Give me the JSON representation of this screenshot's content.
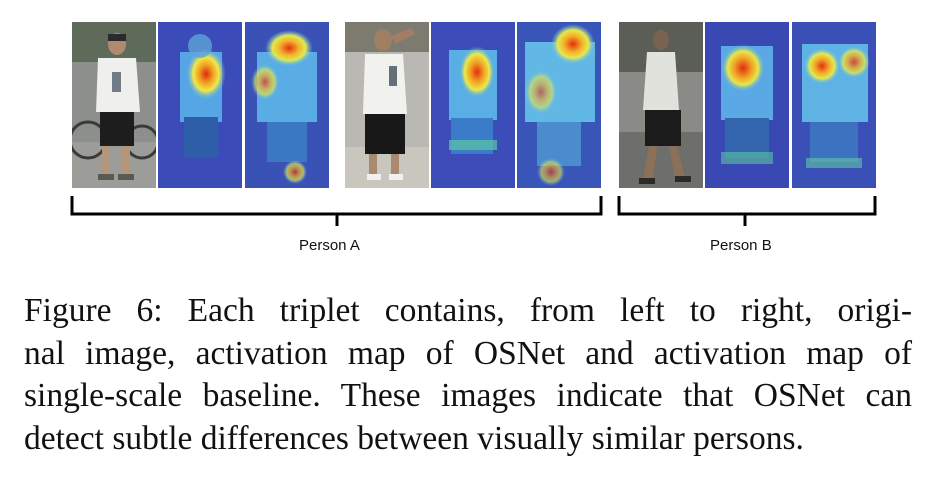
{
  "figure": {
    "groups": [
      {
        "label": "Person A",
        "triplets": 2
      },
      {
        "label": "Person B",
        "triplets": 1
      }
    ],
    "caption_lines": [
      "Figure 6: Each triplet contains, from left to right, origi-",
      "nal image, activation map of OSNet and activation map of",
      "single-scale baseline. These images indicate that OSNet can",
      "detect subtle differences between visually similar persons."
    ]
  }
}
